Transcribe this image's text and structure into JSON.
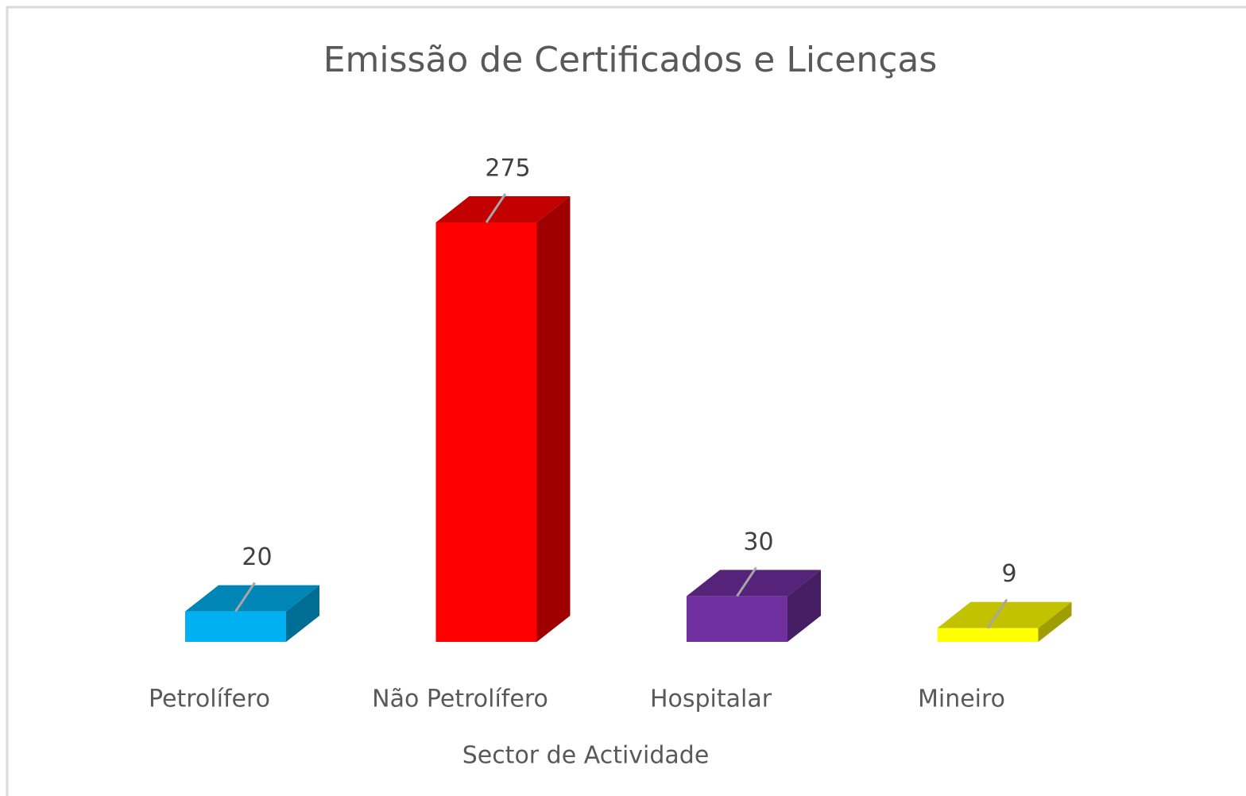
{
  "chart_data": {
    "type": "bar3d",
    "title": "Emissão de Certificados e Licenças",
    "x_label": "Sector de Actividade",
    "categories": [
      "Petrolífero",
      "Não Petrolífero",
      "Hospitalar",
      "Mineiro"
    ],
    "values": [
      20,
      275,
      30,
      9
    ],
    "colors": [
      "#00b0f0",
      "#ff0000",
      "#7030a0",
      "#ffff00"
    ]
  }
}
